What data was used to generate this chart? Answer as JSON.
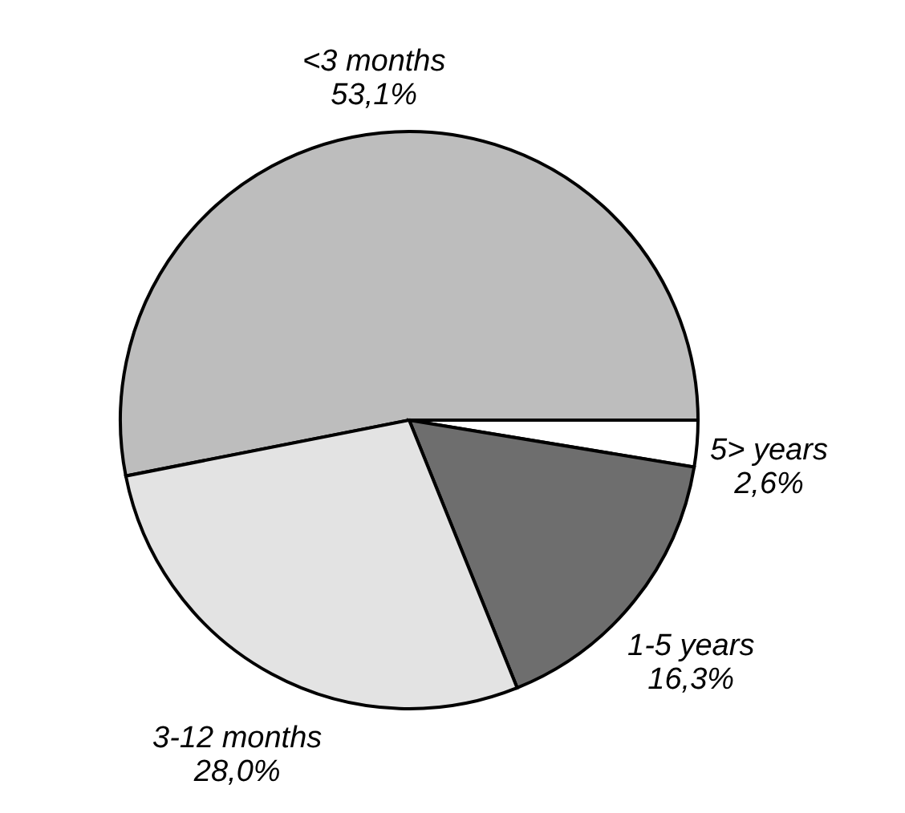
{
  "chart_data": {
    "type": "pie",
    "categories": [
      "<3 months",
      "5> years",
      "1-5 years",
      "3-12 months"
    ],
    "values": [
      53.1,
      2.6,
      16.3,
      28.0
    ],
    "value_labels": [
      "53,1%",
      "2,6%",
      "16,3%",
      "28,0%"
    ],
    "colors": [
      "#bdbdbd",
      "#ffffff",
      "#6e6e6e",
      "#e3e3e3"
    ]
  }
}
